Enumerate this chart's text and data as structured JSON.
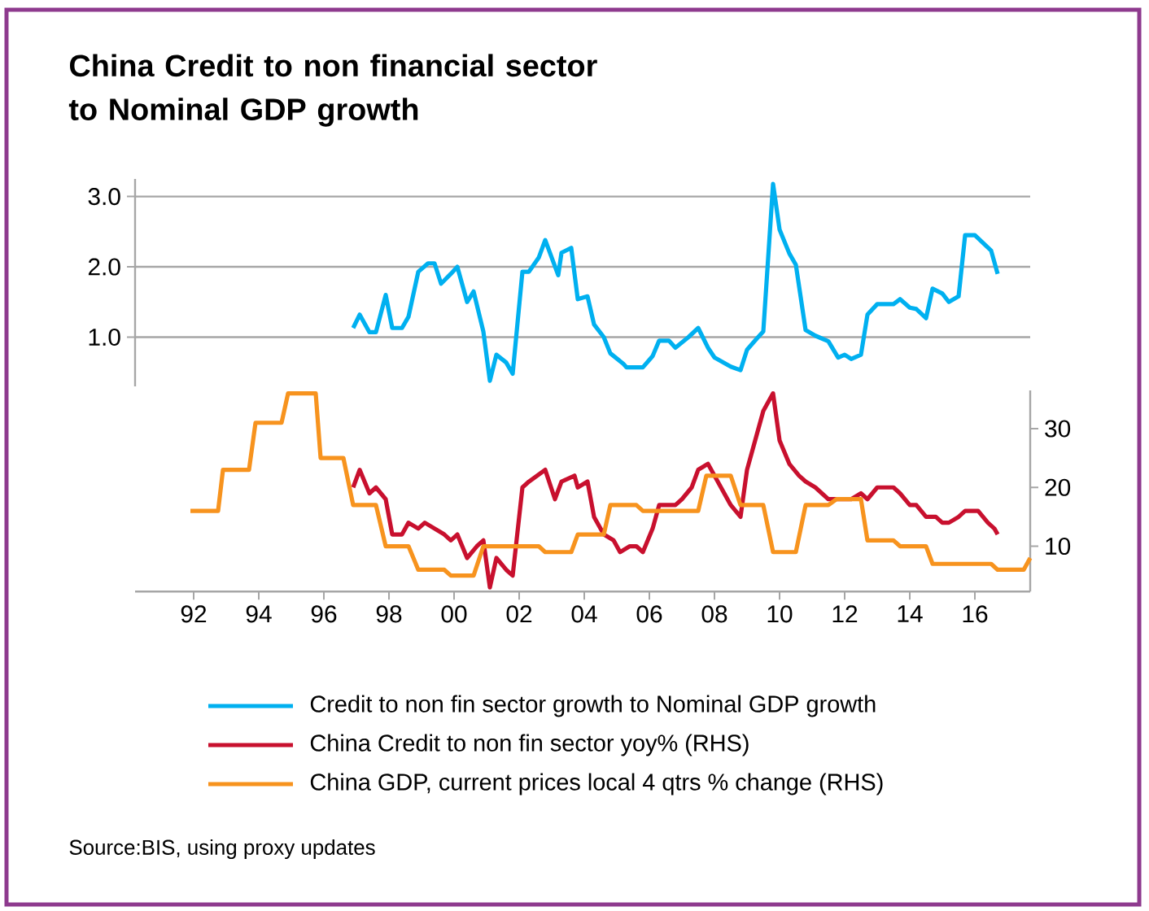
{
  "chart_data": [
    {
      "type": "line",
      "title": "China Credit to non financial sector to Nominal GDP growth",
      "xlim": [
        1990.2,
        2017.7
      ],
      "ylim": [
        0.3,
        3.25
      ],
      "yticks": [
        {
          "value": 1,
          "label": "1.0"
        },
        {
          "value": 2,
          "label": "2.0"
        },
        {
          "value": 3,
          "label": "3.0"
        }
      ],
      "grid": "y",
      "tick_labels": "y",
      "legend": "bottom",
      "series": [
        {
          "name": "Credit to non fin sector growth to Nominal GDP growth",
          "color": "#00b0f0",
          "x": [
            1996.9,
            1997.1,
            1997.4,
            1997.6,
            1997.9,
            1998.1,
            1998.4,
            1998.6,
            1998.9,
            1999.2,
            1999.4,
            1999.6,
            1999.9,
            2000.1,
            2000.4,
            2000.6,
            2000.9,
            2001.1,
            2001.3,
            2001.6,
            2001.8,
            2002.1,
            2002.3,
            2002.6,
            2002.8,
            2003.2,
            2003.3,
            2003.6,
            2003.8,
            2004.1,
            2004.3,
            2004.6,
            2004.8,
            2005.2,
            2005.3,
            2005.8,
            2006.1,
            2006.3,
            2006.6,
            2006.8,
            2007.2,
            2007.5,
            2007.8,
            2008.0,
            2008.5,
            2008.8,
            2009.0,
            2009.3,
            2009.5,
            2009.8,
            2010.0,
            2010.3,
            2010.5,
            2010.8,
            2011.1,
            2011.5,
            2011.8,
            2012.0,
            2012.2,
            2012.5,
            2012.7,
            2013.0,
            2013.5,
            2013.7,
            2014.0,
            2014.2,
            2014.5,
            2014.7,
            2015.0,
            2015.2,
            2015.5,
            2015.7,
            2016.0,
            2016.5,
            2016.7
          ],
          "values": [
            1.13,
            1.32,
            1.07,
            1.07,
            1.6,
            1.13,
            1.13,
            1.29,
            1.93,
            2.05,
            2.05,
            1.76,
            1.9,
            2.0,
            1.5,
            1.65,
            1.08,
            0.38,
            0.75,
            0.64,
            0.48,
            1.93,
            1.93,
            2.13,
            2.38,
            1.88,
            2.2,
            2.27,
            1.54,
            1.58,
            1.18,
            1.0,
            0.77,
            0.62,
            0.57,
            0.57,
            0.73,
            0.95,
            0.95,
            0.85,
            1.0,
            1.13,
            0.85,
            0.71,
            0.58,
            0.53,
            0.82,
            0.98,
            1.08,
            3.18,
            2.53,
            2.19,
            2.03,
            1.1,
            1.02,
            0.94,
            0.71,
            0.75,
            0.69,
            0.75,
            1.32,
            1.47,
            1.47,
            1.54,
            1.42,
            1.4,
            1.27,
            1.69,
            1.62,
            1.5,
            1.58,
            2.45,
            2.45,
            2.23,
            1.9
          ]
        }
      ]
    },
    {
      "type": "line",
      "xlim": [
        1990.2,
        2017.7
      ],
      "xticks": [
        {
          "value": 1992,
          "label": "92"
        },
        {
          "value": 1994,
          "label": "94"
        },
        {
          "value": 1996,
          "label": "96"
        },
        {
          "value": 1998,
          "label": "98"
        },
        {
          "value": 2000,
          "label": "00"
        },
        {
          "value": 2002,
          "label": "02"
        },
        {
          "value": 2004,
          "label": "04"
        },
        {
          "value": 2006,
          "label": "06"
        },
        {
          "value": 2008,
          "label": "08"
        },
        {
          "value": 2010,
          "label": "10"
        },
        {
          "value": 2012,
          "label": "12"
        },
        {
          "value": 2014,
          "label": "14"
        },
        {
          "value": 2016,
          "label": "16"
        }
      ],
      "y2lim": [
        2.3,
        36.5
      ],
      "y2ticks": [
        10,
        20,
        30
      ],
      "legend": "bottom",
      "annotations": [
        "Source:BIS, using proxy updates"
      ],
      "series": [
        {
          "name": "China Credit to non fin sector yoy% (RHS)",
          "color": "#c8102e",
          "axis": "y2",
          "x": [
            1996.9,
            1997.1,
            1997.4,
            1997.6,
            1997.9,
            1998.1,
            1998.4,
            1998.6,
            1998.9,
            1999.1,
            1999.4,
            1999.7,
            1999.9,
            2000.1,
            2000.4,
            2000.7,
            2000.9,
            2001.1,
            2001.3,
            2001.6,
            2001.8,
            2002.1,
            2002.3,
            2002.8,
            2003.1,
            2003.3,
            2003.7,
            2003.8,
            2004.1,
            2004.3,
            2004.6,
            2004.9,
            2005.1,
            2005.4,
            2005.6,
            2005.8,
            2006.1,
            2006.3,
            2006.8,
            2007.0,
            2007.3,
            2007.5,
            2007.8,
            2008.1,
            2008.5,
            2008.8,
            2009.0,
            2009.3,
            2009.5,
            2009.8,
            2010.0,
            2010.3,
            2010.6,
            2010.8,
            2011.1,
            2011.5,
            2011.9,
            2012.2,
            2012.5,
            2012.7,
            2013.0,
            2013.5,
            2013.7,
            2014.0,
            2014.2,
            2014.5,
            2014.8,
            2015.0,
            2015.2,
            2015.5,
            2015.7,
            2016.1,
            2016.4,
            2016.6,
            2016.7
          ],
          "values": [
            20,
            23,
            19,
            20,
            18,
            12,
            12,
            14,
            13,
            14,
            13,
            12,
            11,
            12,
            8,
            10,
            11,
            3,
            8,
            6,
            5,
            20,
            21,
            23,
            18,
            21,
            22,
            20,
            21,
            15,
            12,
            11,
            9,
            10,
            10,
            9,
            13,
            17,
            17,
            18,
            20,
            23,
            24,
            21,
            17,
            15,
            23,
            29,
            33,
            36,
            28,
            24,
            22,
            21,
            20,
            18,
            18,
            18,
            19,
            18,
            20,
            20,
            19,
            17,
            17,
            15,
            15,
            14,
            14,
            15,
            16,
            16,
            14,
            13,
            12
          ]
        },
        {
          "name": "China GDP, current prices local 4 qtrs % change (RHS)",
          "color": "#f7931e",
          "axis": "y2",
          "x": [
            1991.9,
            1992.75,
            1992.9,
            1993.7,
            1993.9,
            1994.7,
            1994.9,
            1995.75,
            1995.9,
            1996.6,
            1996.9,
            1997.6,
            1997.9,
            1998.6,
            1998.9,
            1999.7,
            1999.9,
            2000.6,
            2000.9,
            2001.7,
            2001.9,
            2002.6,
            2002.8,
            2003.6,
            2003.8,
            2004.6,
            2004.8,
            2005.6,
            2005.8,
            2006.6,
            2006.8,
            2007.5,
            2007.75,
            2008.5,
            2008.8,
            2009.5,
            2009.8,
            2010.5,
            2010.8,
            2011.5,
            2011.75,
            2012.5,
            2012.7,
            2013.5,
            2013.7,
            2014.5,
            2014.7,
            2016.5,
            2016.7,
            2017.5,
            2017.7
          ],
          "values": [
            16,
            16,
            23,
            23,
            31,
            31,
            36,
            36,
            25,
            25,
            17,
            17,
            10,
            10,
            6,
            6,
            5,
            5,
            10,
            10,
            10,
            10,
            9,
            9,
            12,
            12,
            17,
            17,
            16,
            16,
            16,
            16,
            22,
            22,
            17,
            17,
            9,
            9,
            17,
            17,
            18,
            18,
            11,
            11,
            10,
            10,
            7,
            7,
            6,
            6,
            8
          ]
        }
      ]
    }
  ]
}
